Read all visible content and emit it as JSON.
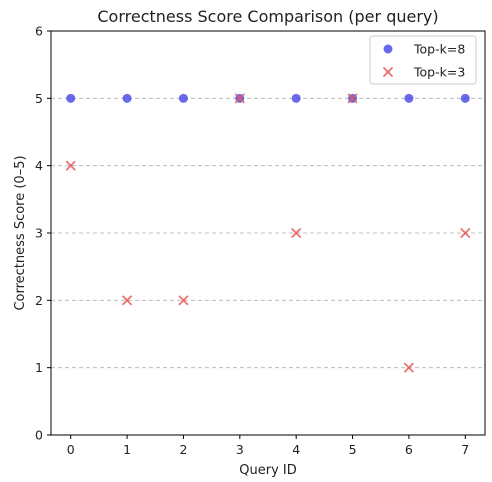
{
  "chart_data": {
    "type": "scatter",
    "title": "Correctness Score Comparison (per query)",
    "xlabel": "Query ID",
    "ylabel": "Correctness Score (0–5)",
    "xlim": [
      -0.35,
      7.35
    ],
    "ylim": [
      0,
      6
    ],
    "xticks": [
      "0",
      "1",
      "2",
      "3",
      "4",
      "5",
      "6",
      "7"
    ],
    "yticks": [
      "0",
      "1",
      "2",
      "3",
      "4",
      "5",
      "6"
    ],
    "grid": "y-dashed",
    "legend_position": "top-right",
    "series": [
      {
        "name": "Top-k=8",
        "marker": "circle",
        "color": "#4444e6",
        "x": [
          0,
          1,
          2,
          3,
          4,
          5,
          6,
          7
        ],
        "y": [
          5,
          5,
          5,
          5,
          5,
          5,
          5,
          5
        ]
      },
      {
        "name": "Top-k=3",
        "marker": "x",
        "color": "#e85a5a",
        "x": [
          0,
          1,
          2,
          3,
          4,
          5,
          6,
          7
        ],
        "y": [
          4,
          2,
          2,
          5,
          3,
          5,
          1,
          3
        ]
      }
    ]
  }
}
